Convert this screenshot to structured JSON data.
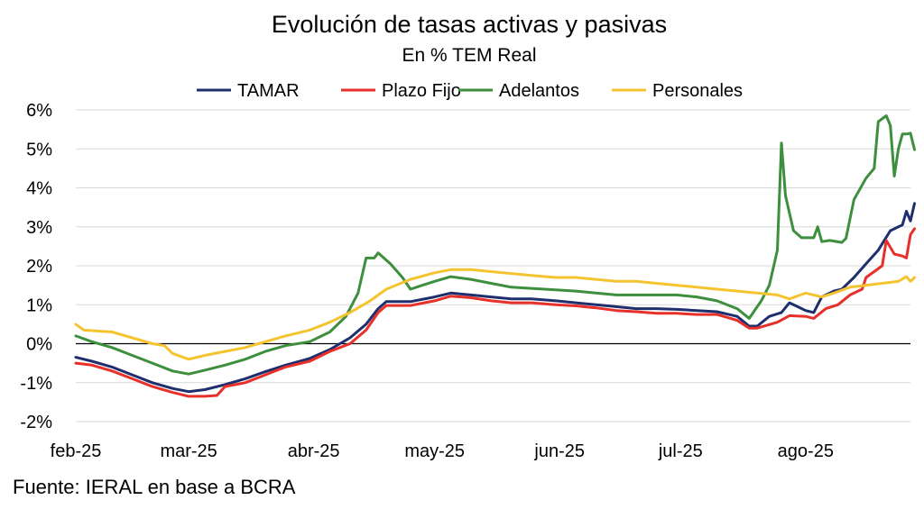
{
  "chart_data": {
    "type": "line",
    "title": "Evolución de tasas activas y pasivas",
    "subtitle": "En % TEM Real",
    "source": "Fuente: IERAL en base a BCRA",
    "x_ticks": [
      "feb-25",
      "mar-25",
      "abr-25",
      "may-25",
      "jun-25",
      "jul-25",
      "ago-25"
    ],
    "y_ticks": [
      "-2%",
      "-1%",
      "0%",
      "1%",
      "2%",
      "3%",
      "4%",
      "5%",
      "6%"
    ],
    "ylim": [
      -2,
      6
    ],
    "x_range": [
      "2025-02-01",
      "2025-08-27"
    ],
    "y_unit": "%",
    "grid": true,
    "legend_position": "top",
    "series": [
      {
        "name": "TAMAR",
        "color": "#1f2f6e",
        "points": [
          [
            "2025-02-01",
            -0.35
          ],
          [
            "2025-02-05",
            -0.45
          ],
          [
            "2025-02-10",
            -0.6
          ],
          [
            "2025-02-15",
            -0.8
          ],
          [
            "2025-02-20",
            -1.0
          ],
          [
            "2025-02-25",
            -1.15
          ],
          [
            "2025-03-01",
            -1.23
          ],
          [
            "2025-03-05",
            -1.18
          ],
          [
            "2025-03-10",
            -1.05
          ],
          [
            "2025-03-15",
            -0.9
          ],
          [
            "2025-03-20",
            -0.72
          ],
          [
            "2025-03-25",
            -0.55
          ],
          [
            "2025-03-31",
            -0.38
          ],
          [
            "2025-04-05",
            -0.15
          ],
          [
            "2025-04-10",
            0.15
          ],
          [
            "2025-04-14",
            0.5
          ],
          [
            "2025-04-17",
            0.9
          ],
          [
            "2025-04-19",
            1.08
          ],
          [
            "2025-04-25",
            1.08
          ],
          [
            "2025-05-01",
            1.2
          ],
          [
            "2025-05-05",
            1.3
          ],
          [
            "2025-05-10",
            1.25
          ],
          [
            "2025-05-15",
            1.2
          ],
          [
            "2025-05-20",
            1.15
          ],
          [
            "2025-05-25",
            1.15
          ],
          [
            "2025-05-31",
            1.1
          ],
          [
            "2025-06-05",
            1.05
          ],
          [
            "2025-06-10",
            1.0
          ],
          [
            "2025-06-15",
            0.95
          ],
          [
            "2025-06-20",
            0.9
          ],
          [
            "2025-06-25",
            0.9
          ],
          [
            "2025-06-30",
            0.88
          ],
          [
            "2025-07-05",
            0.85
          ],
          [
            "2025-07-10",
            0.82
          ],
          [
            "2025-07-15",
            0.7
          ],
          [
            "2025-07-18",
            0.45
          ],
          [
            "2025-07-20",
            0.45
          ],
          [
            "2025-07-23",
            0.7
          ],
          [
            "2025-07-26",
            0.8
          ],
          [
            "2025-07-28",
            1.05
          ],
          [
            "2025-07-30",
            0.95
          ],
          [
            "2025-08-01",
            0.85
          ],
          [
            "2025-08-03",
            0.8
          ],
          [
            "2025-08-05",
            1.2
          ],
          [
            "2025-08-08",
            1.35
          ],
          [
            "2025-08-10",
            1.4
          ],
          [
            "2025-08-13",
            1.7
          ],
          [
            "2025-08-16",
            2.05
          ],
          [
            "2025-08-19",
            2.4
          ],
          [
            "2025-08-22",
            2.9
          ],
          [
            "2025-08-25",
            3.05
          ],
          [
            "2025-08-26",
            3.4
          ],
          [
            "2025-08-27",
            3.15
          ],
          [
            "2025-08-28",
            3.6
          ]
        ]
      },
      {
        "name": "Plazo Fijo",
        "color": "#e8302a",
        "points": [
          [
            "2025-02-01",
            -0.5
          ],
          [
            "2025-02-05",
            -0.55
          ],
          [
            "2025-02-10",
            -0.7
          ],
          [
            "2025-02-15",
            -0.9
          ],
          [
            "2025-02-20",
            -1.1
          ],
          [
            "2025-02-25",
            -1.25
          ],
          [
            "2025-03-01",
            -1.35
          ],
          [
            "2025-03-05",
            -1.35
          ],
          [
            "2025-03-08",
            -1.33
          ],
          [
            "2025-03-10",
            -1.1
          ],
          [
            "2025-03-15",
            -1.0
          ],
          [
            "2025-03-20",
            -0.8
          ],
          [
            "2025-03-25",
            -0.6
          ],
          [
            "2025-03-31",
            -0.45
          ],
          [
            "2025-04-05",
            -0.2
          ],
          [
            "2025-04-10",
            0.0
          ],
          [
            "2025-04-14",
            0.35
          ],
          [
            "2025-04-17",
            0.8
          ],
          [
            "2025-04-19",
            0.98
          ],
          [
            "2025-04-25",
            0.98
          ],
          [
            "2025-05-01",
            1.1
          ],
          [
            "2025-05-05",
            1.22
          ],
          [
            "2025-05-10",
            1.18
          ],
          [
            "2025-05-15",
            1.1
          ],
          [
            "2025-05-20",
            1.05
          ],
          [
            "2025-05-25",
            1.05
          ],
          [
            "2025-05-31",
            1.0
          ],
          [
            "2025-06-05",
            0.97
          ],
          [
            "2025-06-10",
            0.92
          ],
          [
            "2025-06-15",
            0.85
          ],
          [
            "2025-06-20",
            0.82
          ],
          [
            "2025-06-25",
            0.78
          ],
          [
            "2025-06-30",
            0.78
          ],
          [
            "2025-07-05",
            0.75
          ],
          [
            "2025-07-10",
            0.75
          ],
          [
            "2025-07-15",
            0.6
          ],
          [
            "2025-07-18",
            0.4
          ],
          [
            "2025-07-20",
            0.4
          ],
          [
            "2025-07-25",
            0.55
          ],
          [
            "2025-07-28",
            0.72
          ],
          [
            "2025-08-01",
            0.7
          ],
          [
            "2025-08-03",
            0.65
          ],
          [
            "2025-08-06",
            0.9
          ],
          [
            "2025-08-09",
            1.0
          ],
          [
            "2025-08-12",
            1.25
          ],
          [
            "2025-08-15",
            1.4
          ],
          [
            "2025-08-16",
            1.7
          ],
          [
            "2025-08-20",
            2.0
          ],
          [
            "2025-08-21",
            2.65
          ],
          [
            "2025-08-23",
            2.3
          ],
          [
            "2025-08-25",
            2.25
          ],
          [
            "2025-08-26",
            2.2
          ],
          [
            "2025-08-27",
            2.8
          ],
          [
            "2025-08-28",
            2.95
          ]
        ]
      },
      {
        "name": "Adelantos",
        "color": "#3d8f3d",
        "points": [
          [
            "2025-02-01",
            0.2
          ],
          [
            "2025-02-05",
            0.05
          ],
          [
            "2025-02-10",
            -0.1
          ],
          [
            "2025-02-15",
            -0.3
          ],
          [
            "2025-02-20",
            -0.5
          ],
          [
            "2025-02-25",
            -0.7
          ],
          [
            "2025-03-01",
            -0.78
          ],
          [
            "2025-03-05",
            -0.68
          ],
          [
            "2025-03-10",
            -0.55
          ],
          [
            "2025-03-15",
            -0.4
          ],
          [
            "2025-03-20",
            -0.2
          ],
          [
            "2025-03-25",
            -0.05
          ],
          [
            "2025-03-31",
            0.05
          ],
          [
            "2025-04-05",
            0.3
          ],
          [
            "2025-04-09",
            0.7
          ],
          [
            "2025-04-12",
            1.3
          ],
          [
            "2025-04-14",
            2.2
          ],
          [
            "2025-04-16",
            2.2
          ],
          [
            "2025-04-17",
            2.33
          ],
          [
            "2025-04-20",
            2.05
          ],
          [
            "2025-04-23",
            1.7
          ],
          [
            "2025-04-25",
            1.4
          ],
          [
            "2025-04-28",
            1.5
          ],
          [
            "2025-05-01",
            1.6
          ],
          [
            "2025-05-05",
            1.72
          ],
          [
            "2025-05-10",
            1.65
          ],
          [
            "2025-05-15",
            1.55
          ],
          [
            "2025-05-20",
            1.45
          ],
          [
            "2025-05-25",
            1.42
          ],
          [
            "2025-05-31",
            1.38
          ],
          [
            "2025-06-05",
            1.35
          ],
          [
            "2025-06-10",
            1.3
          ],
          [
            "2025-06-15",
            1.25
          ],
          [
            "2025-06-20",
            1.25
          ],
          [
            "2025-06-25",
            1.25
          ],
          [
            "2025-06-30",
            1.25
          ],
          [
            "2025-07-05",
            1.2
          ],
          [
            "2025-07-10",
            1.1
          ],
          [
            "2025-07-15",
            0.9
          ],
          [
            "2025-07-18",
            0.65
          ],
          [
            "2025-07-21",
            1.1
          ],
          [
            "2025-07-23",
            1.5
          ],
          [
            "2025-07-25",
            2.4
          ],
          [
            "2025-07-26",
            5.15
          ],
          [
            "2025-07-27",
            3.8
          ],
          [
            "2025-07-29",
            2.9
          ],
          [
            "2025-07-31",
            2.72
          ],
          [
            "2025-08-02",
            2.72
          ],
          [
            "2025-08-03",
            2.72
          ],
          [
            "2025-08-04",
            3.0
          ],
          [
            "2025-08-05",
            2.62
          ],
          [
            "2025-08-07",
            2.65
          ],
          [
            "2025-08-10",
            2.6
          ],
          [
            "2025-08-11",
            2.7
          ],
          [
            "2025-08-13",
            3.7
          ],
          [
            "2025-08-16",
            4.25
          ],
          [
            "2025-08-18",
            4.5
          ],
          [
            "2025-08-19",
            5.7
          ],
          [
            "2025-08-21",
            5.85
          ],
          [
            "2025-08-22",
            5.6
          ],
          [
            "2025-08-23",
            4.3
          ],
          [
            "2025-08-24",
            5.0
          ],
          [
            "2025-08-25",
            5.38
          ],
          [
            "2025-08-26",
            5.38
          ],
          [
            "2025-08-27",
            5.4
          ],
          [
            "2025-08-28",
            4.98
          ]
        ]
      },
      {
        "name": "Personales",
        "color": "#f4c430",
        "points": [
          [
            "2025-02-01",
            0.5
          ],
          [
            "2025-02-03",
            0.35
          ],
          [
            "2025-02-10",
            0.3
          ],
          [
            "2025-02-15",
            0.15
          ],
          [
            "2025-02-20",
            0.0
          ],
          [
            "2025-02-23",
            -0.05
          ],
          [
            "2025-02-25",
            -0.25
          ],
          [
            "2025-03-01",
            -0.4
          ],
          [
            "2025-03-05",
            -0.3
          ],
          [
            "2025-03-10",
            -0.2
          ],
          [
            "2025-03-15",
            -0.1
          ],
          [
            "2025-03-20",
            0.05
          ],
          [
            "2025-03-25",
            0.2
          ],
          [
            "2025-03-31",
            0.35
          ],
          [
            "2025-04-05",
            0.55
          ],
          [
            "2025-04-10",
            0.8
          ],
          [
            "2025-04-15",
            1.1
          ],
          [
            "2025-04-19",
            1.4
          ],
          [
            "2025-04-25",
            1.65
          ],
          [
            "2025-05-01",
            1.82
          ],
          [
            "2025-05-05",
            1.9
          ],
          [
            "2025-05-10",
            1.9
          ],
          [
            "2025-05-15",
            1.85
          ],
          [
            "2025-05-20",
            1.8
          ],
          [
            "2025-05-25",
            1.75
          ],
          [
            "2025-05-31",
            1.7
          ],
          [
            "2025-06-05",
            1.7
          ],
          [
            "2025-06-10",
            1.65
          ],
          [
            "2025-06-15",
            1.6
          ],
          [
            "2025-06-20",
            1.6
          ],
          [
            "2025-06-25",
            1.55
          ],
          [
            "2025-06-30",
            1.5
          ],
          [
            "2025-07-05",
            1.45
          ],
          [
            "2025-07-10",
            1.4
          ],
          [
            "2025-07-15",
            1.35
          ],
          [
            "2025-07-20",
            1.3
          ],
          [
            "2025-07-25",
            1.25
          ],
          [
            "2025-07-28",
            1.15
          ],
          [
            "2025-08-01",
            1.3
          ],
          [
            "2025-08-05",
            1.2
          ],
          [
            "2025-08-08",
            1.3
          ],
          [
            "2025-08-12",
            1.45
          ],
          [
            "2025-08-16",
            1.5
          ],
          [
            "2025-08-20",
            1.55
          ],
          [
            "2025-08-24",
            1.6
          ],
          [
            "2025-08-26",
            1.72
          ],
          [
            "2025-08-27",
            1.6
          ],
          [
            "2025-08-28",
            1.7
          ]
        ]
      }
    ]
  }
}
